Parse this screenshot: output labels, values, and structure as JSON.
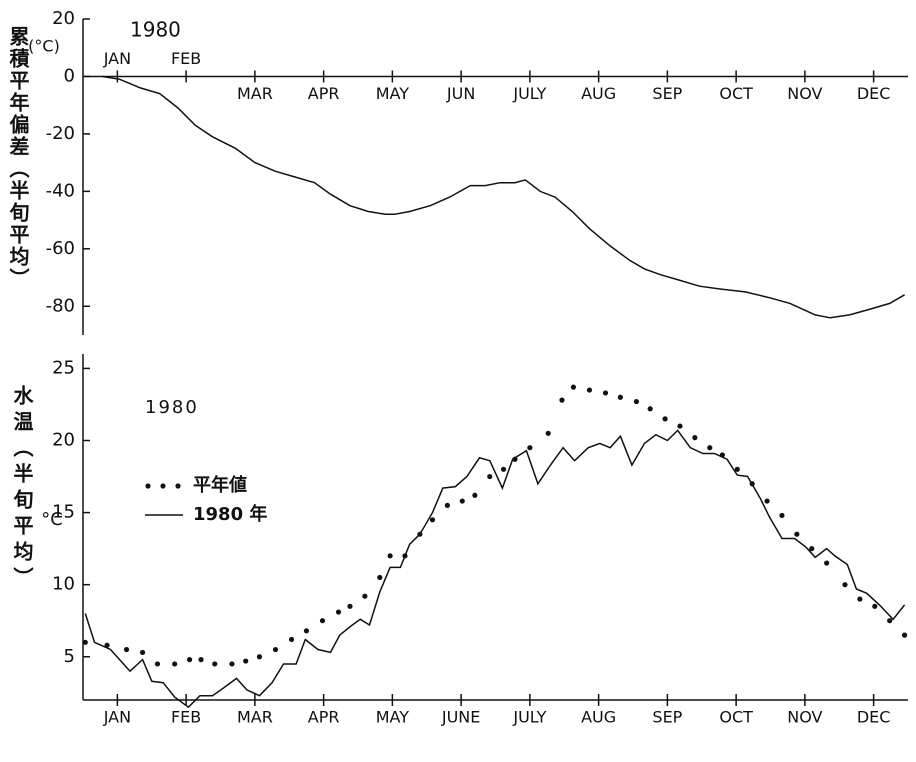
{
  "chart_data": [
    {
      "type": "line",
      "title": "1980",
      "y_unit": "(°C)",
      "ylabel": "累積平年偏差（半旬平均）",
      "xlim": [
        0,
        72
      ],
      "xticks": [
        {
          "value": 3,
          "label": "JAN"
        },
        {
          "value": 9,
          "label": "FEB"
        },
        {
          "value": 15,
          "label": "MAR"
        },
        {
          "value": 21,
          "label": "APR"
        },
        {
          "value": 27,
          "label": "MAY"
        },
        {
          "value": 33,
          "label": "JUN"
        },
        {
          "value": 39,
          "label": "JULY"
        },
        {
          "value": 45,
          "label": "AUG"
        },
        {
          "value": 51,
          "label": "SEP"
        },
        {
          "value": 57,
          "label": "OCT"
        },
        {
          "value": 63,
          "label": "NOV"
        },
        {
          "value": 69,
          "label": "DEC"
        }
      ],
      "ylim": [
        -90,
        20
      ],
      "yticks": [
        20,
        0,
        -20,
        -40,
        -60,
        -80
      ],
      "series": [
        {
          "color": "#111",
          "style": "solid",
          "x": [
            1.7,
            3.2,
            5.0,
            6.7,
            8.3,
            9.8,
            11.3,
            13.3,
            15.0,
            16.8,
            18.5,
            20.2,
            21.6,
            23.3,
            24.9,
            26.4,
            27.2,
            28.5,
            30.3,
            32.0,
            33.8,
            35.1,
            36.4,
            37.7,
            38.6,
            39.9,
            41.2,
            42.7,
            44.2,
            46.0,
            47.7,
            49.0,
            50.4,
            52.1,
            53.8,
            55.6,
            57.8,
            59.9,
            61.7,
            63.9,
            65.2,
            66.9,
            68.7,
            70.4,
            71.7
          ],
          "values": [
            0,
            -1,
            -4,
            -6,
            -11,
            -17,
            -21,
            -25,
            -30,
            -33,
            -35,
            -37,
            -41,
            -45,
            -47,
            -48,
            -48,
            -47,
            -45,
            -42,
            -38,
            -38,
            -37,
            -37,
            -36,
            -40,
            -42,
            -47,
            -53,
            -59,
            -64,
            -67,
            -69,
            -71,
            -73,
            -74,
            -75,
            -77,
            -79,
            -83,
            -84,
            -83,
            -81,
            -79,
            -76
          ]
        }
      ]
    },
    {
      "type": "line",
      "title": "1980",
      "y_unit": "°C",
      "ylabel": "水温（半旬平均）",
      "xlim": [
        0,
        72
      ],
      "xticks": [
        {
          "value": 3,
          "label": "JAN"
        },
        {
          "value": 9,
          "label": "FEB"
        },
        {
          "value": 15,
          "label": "MAR"
        },
        {
          "value": 21,
          "label": "APR"
        },
        {
          "value": 27,
          "label": "MAY"
        },
        {
          "value": 33,
          "label": "JUNE"
        },
        {
          "value": 39,
          "label": "JULY"
        },
        {
          "value": 45,
          "label": "AUG"
        },
        {
          "value": 51,
          "label": "SEP"
        },
        {
          "value": 57,
          "label": "OCT"
        },
        {
          "value": 63,
          "label": "NOV"
        },
        {
          "value": 69,
          "label": "DEC"
        }
      ],
      "ylim": [
        2,
        26
      ],
      "yticks": [
        5,
        10,
        15,
        20,
        25
      ],
      "series": [
        {
          "name": "平年値",
          "color": "#111",
          "style": "dotted",
          "x": [
            0.2,
            2.1,
            3.8,
            5.2,
            6.5,
            8.0,
            9.3,
            10.3,
            11.5,
            13.0,
            14.2,
            15.4,
            16.8,
            18.2,
            19.5,
            20.9,
            22.3,
            23.3,
            24.6,
            25.9,
            26.8,
            28.1,
            29.4,
            30.5,
            31.8,
            33.1,
            34.2,
            35.5,
            36.7,
            37.7,
            39.0,
            40.6,
            41.8,
            42.8,
            44.2,
            45.6,
            46.9,
            48.3,
            49.5,
            50.8,
            52.1,
            53.4,
            54.7,
            55.8,
            57.1,
            58.4,
            59.7,
            61.0,
            62.3,
            63.6,
            64.9,
            66.5,
            67.8,
            69.1,
            70.4,
            71.7
          ],
          "values": [
            6.0,
            5.8,
            5.5,
            5.3,
            4.5,
            4.5,
            4.8,
            4.8,
            4.5,
            4.5,
            4.7,
            5.0,
            5.5,
            6.2,
            6.8,
            7.5,
            8.1,
            8.5,
            9.2,
            10.5,
            12.0,
            12.0,
            13.5,
            14.5,
            15.5,
            15.8,
            16.2,
            17.5,
            18.0,
            18.7,
            19.5,
            20.5,
            22.8,
            23.7,
            23.5,
            23.3,
            23.0,
            22.7,
            22.2,
            21.5,
            21.0,
            20.2,
            19.5,
            19.0,
            18.0,
            17.0,
            15.8,
            14.8,
            13.5,
            12.5,
            11.5,
            10.0,
            9.0,
            8.5,
            7.5,
            6.5
          ]
        },
        {
          "name": "1980 年",
          "color": "#111",
          "style": "solid",
          "x": [
            0.2,
            1.0,
            2.4,
            4.1,
            5.2,
            6.0,
            7.0,
            8.0,
            9.2,
            10.2,
            11.3,
            12.2,
            13.4,
            14.3,
            15.4,
            16.5,
            17.5,
            18.6,
            19.4,
            20.5,
            21.6,
            22.4,
            23.5,
            24.2,
            25.0,
            25.9,
            26.8,
            27.7,
            28.5,
            29.4,
            30.5,
            31.4,
            32.5,
            33.5,
            34.6,
            35.5,
            36.6,
            37.5,
            38.7,
            39.7,
            40.8,
            41.9,
            42.9,
            44.1,
            45.1,
            46.0,
            46.9,
            47.9,
            49.0,
            50.0,
            51.0,
            51.9,
            53.0,
            54.1,
            55.1,
            56.2,
            57.1,
            58.0,
            59.1,
            59.9,
            61.0,
            62.1,
            63.1,
            63.9,
            64.9,
            65.6,
            66.7,
            67.5,
            68.4,
            69.5,
            70.7,
            71.7
          ],
          "values": [
            8.0,
            6.0,
            5.5,
            4.0,
            4.8,
            3.3,
            3.2,
            2.2,
            1.5,
            2.3,
            2.3,
            2.8,
            3.5,
            2.7,
            2.3,
            3.2,
            4.5,
            4.5,
            6.2,
            5.5,
            5.3,
            6.5,
            7.2,
            7.6,
            7.2,
            9.5,
            11.2,
            11.2,
            12.8,
            13.5,
            15.0,
            16.7,
            16.8,
            17.5,
            18.8,
            18.6,
            16.7,
            18.7,
            19.3,
            17.0,
            18.3,
            19.5,
            18.6,
            19.5,
            19.8,
            19.5,
            20.3,
            18.3,
            19.8,
            20.4,
            20.0,
            20.7,
            19.5,
            19.1,
            19.1,
            18.7,
            17.6,
            17.5,
            16.0,
            14.7,
            13.2,
            13.2,
            12.6,
            11.9,
            12.5,
            12.0,
            11.4,
            9.7,
            9.4,
            8.6,
            7.6,
            8.6
          ]
        }
      ]
    }
  ]
}
